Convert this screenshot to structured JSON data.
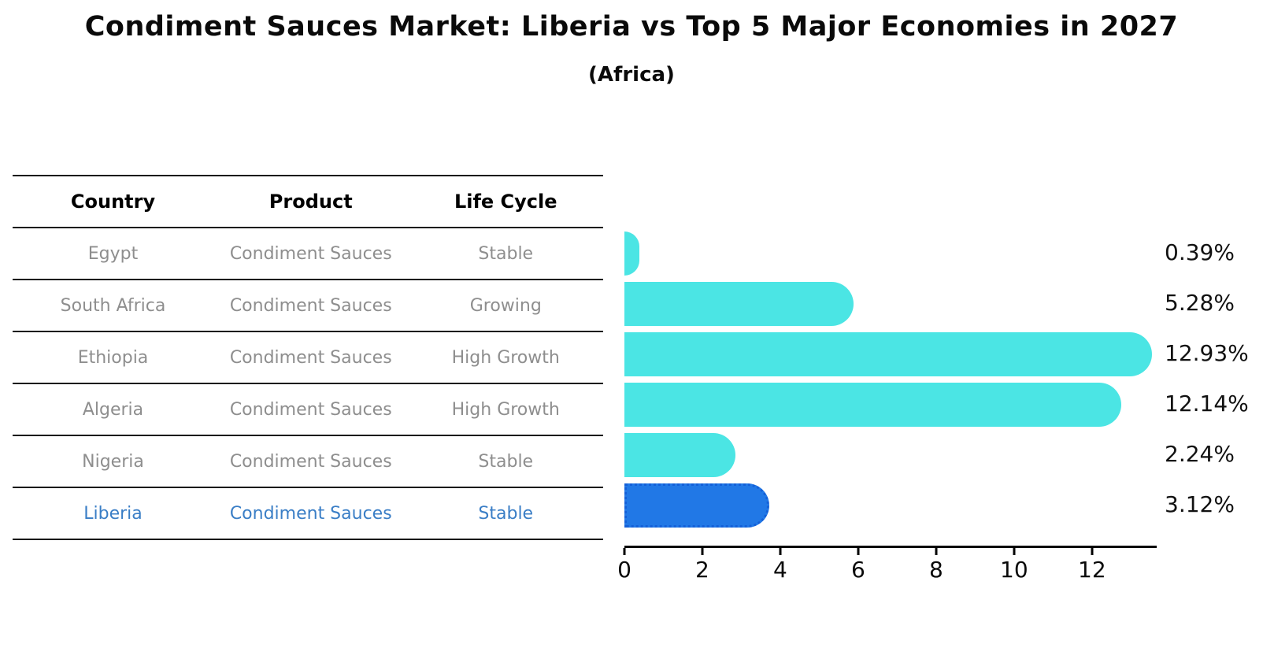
{
  "header": {
    "title": "Condiment Sauces Market: Liberia vs Top 5 Major Economies in 2027",
    "subtitle": "(Africa)"
  },
  "table": {
    "columns": [
      "Country",
      "Product",
      "Life Cycle"
    ],
    "rows": [
      {
        "country": "Egypt",
        "product": "Condiment Sauces",
        "life_cycle": "Stable",
        "highlight": false
      },
      {
        "country": "South Africa",
        "product": "Condiment Sauces",
        "life_cycle": "Growing",
        "highlight": false
      },
      {
        "country": "Ethiopia",
        "product": "Condiment Sauces",
        "life_cycle": "High Growth",
        "highlight": false
      },
      {
        "country": "Algeria",
        "product": "Condiment Sauces",
        "life_cycle": "High Growth",
        "highlight": false
      },
      {
        "country": "Nigeria",
        "product": "Condiment Sauces",
        "life_cycle": "Stable",
        "highlight": false
      },
      {
        "country": "Liberia",
        "product": "Condiment Sauces",
        "life_cycle": "Stable",
        "highlight": true
      }
    ]
  },
  "chart_data": {
    "type": "bar",
    "orientation": "horizontal",
    "title": "Condiment Sauces Market: Liberia vs Top 5 Major Economies in 2027",
    "subtitle": "(Africa)",
    "categories": [
      "Egypt",
      "South Africa",
      "Ethiopia",
      "Algeria",
      "Nigeria",
      "Liberia"
    ],
    "values": [
      0.39,
      5.28,
      12.93,
      12.14,
      2.24,
      3.12
    ],
    "value_labels": [
      "0.39%",
      "5.28%",
      "12.93%",
      "12.14%",
      "2.24%",
      "3.12%"
    ],
    "xlabel": "",
    "ylabel": "",
    "xlim": [
      0,
      13.64
    ],
    "x_ticks": [
      0,
      2,
      4,
      6,
      8,
      10,
      12
    ],
    "grid": false,
    "legend": false,
    "highlight_index": 5,
    "colors": {
      "bar": "#4BE5E4",
      "highlight_bar": "#2178E6",
      "highlight_border": "#1460D8",
      "axis": "#000000",
      "value_label_text": "#111111",
      "table_text": "#8E8E8E",
      "table_header_text": "#000000",
      "highlight_text": "#3A7EC6"
    }
  }
}
